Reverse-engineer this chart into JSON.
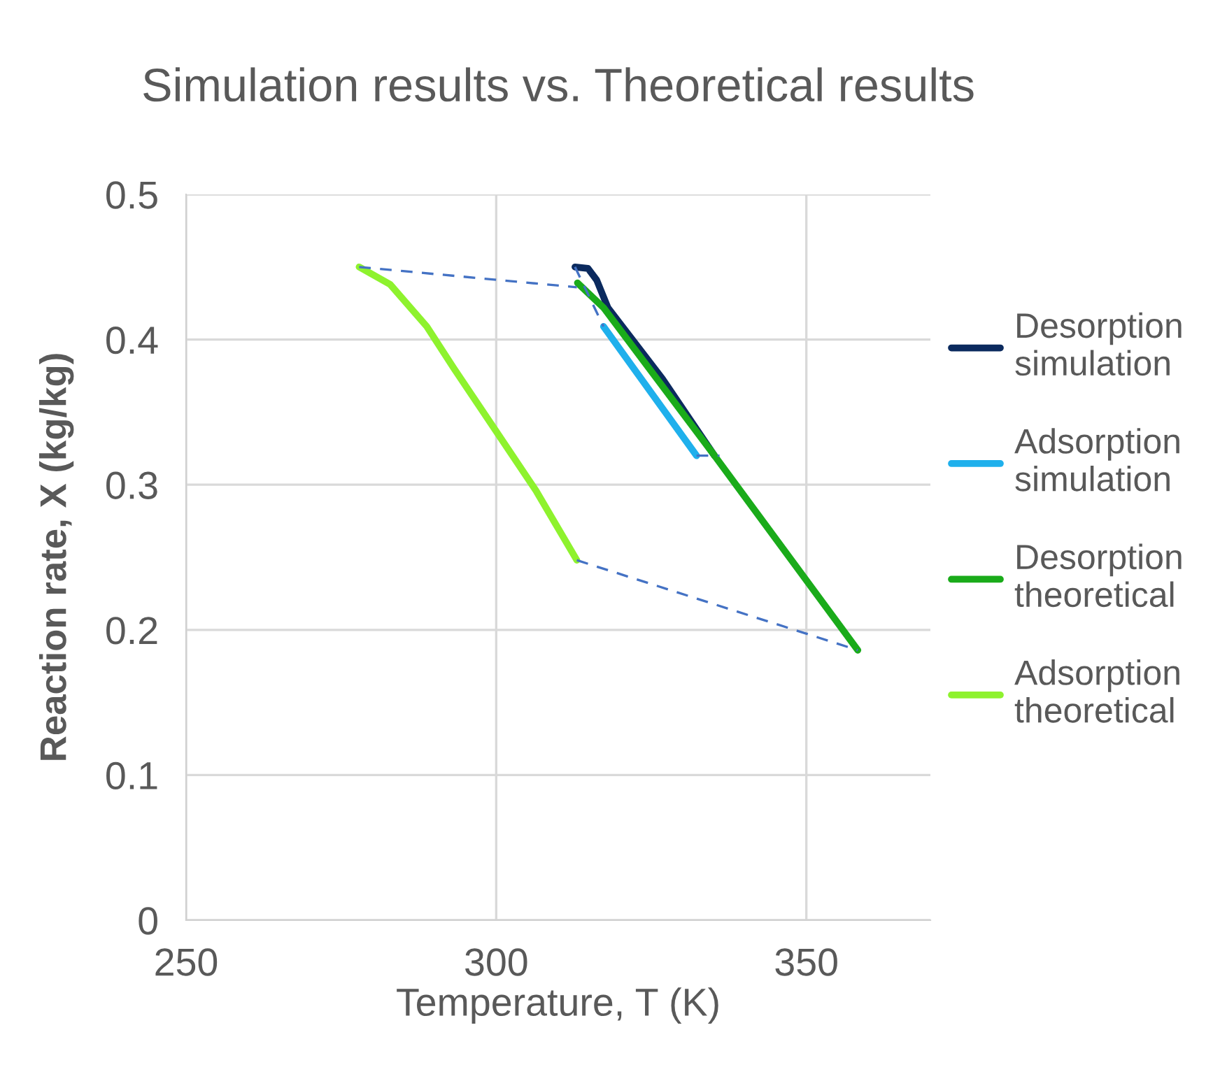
{
  "chart_data": {
    "type": "line",
    "title": "Simulation results vs. Theoretical results",
    "xlabel": "Temperature, T (K)",
    "ylabel": "Reaction rate, X (kg/kg)",
    "xlim": [
      250,
      370
    ],
    "xticks": [
      250,
      300,
      350
    ],
    "ylim": [
      0,
      0.5
    ],
    "yticks": [
      0,
      0.1,
      0.2,
      0.3,
      0.4,
      0.5
    ],
    "grid": true,
    "legend": "right",
    "marker": "none",
    "series": [
      {
        "name": "Desorption simulation",
        "color": "#0b2a5e",
        "x": [
          312.7,
          314.8,
          316.2,
          318.0,
          326.8,
          335.2
        ],
        "values": [
          0.45,
          0.449,
          0.441,
          0.422,
          0.373,
          0.32
        ]
      },
      {
        "name": "Adsorption simulation",
        "color": "#1fb0ec",
        "x": [
          317.3,
          332.3
        ],
        "values": [
          0.409,
          0.32
        ]
      },
      {
        "name": "Desorption theoretical",
        "color": "#1aab1a",
        "x": [
          313.1,
          317.3,
          335.2,
          358.3
        ],
        "values": [
          0.439,
          0.422,
          0.32,
          0.186
        ]
      },
      {
        "name": "Adsorption theoretical",
        "color": "#8ef22e",
        "x": [
          277.9,
          282.9,
          288.8,
          293.2,
          299.8,
          306.4,
          313.0
        ],
        "values": [
          0.45,
          0.438,
          0.409,
          0.38,
          0.338,
          0.296,
          0.248
        ]
      },
      {
        "color": "#4472c4",
        "line_style": "dashed",
        "x": [
          277.9,
          313.0
        ],
        "values": [
          0.45,
          0.436
        ]
      },
      {
        "color": "#4472c4",
        "line_style": "dashed",
        "x": [
          313.0,
          358.3
        ],
        "values": [
          0.248,
          0.186
        ]
      },
      {
        "color": "#4472c4",
        "line_style": "dashed",
        "x": [
          312.7,
          317.3
        ],
        "values": [
          0.45,
          0.409
        ]
      },
      {
        "color": "#4472c4",
        "line_style": "dashed",
        "x": [
          332.3,
          336.0
        ],
        "values": [
          0.32,
          0.32
        ]
      }
    ]
  }
}
